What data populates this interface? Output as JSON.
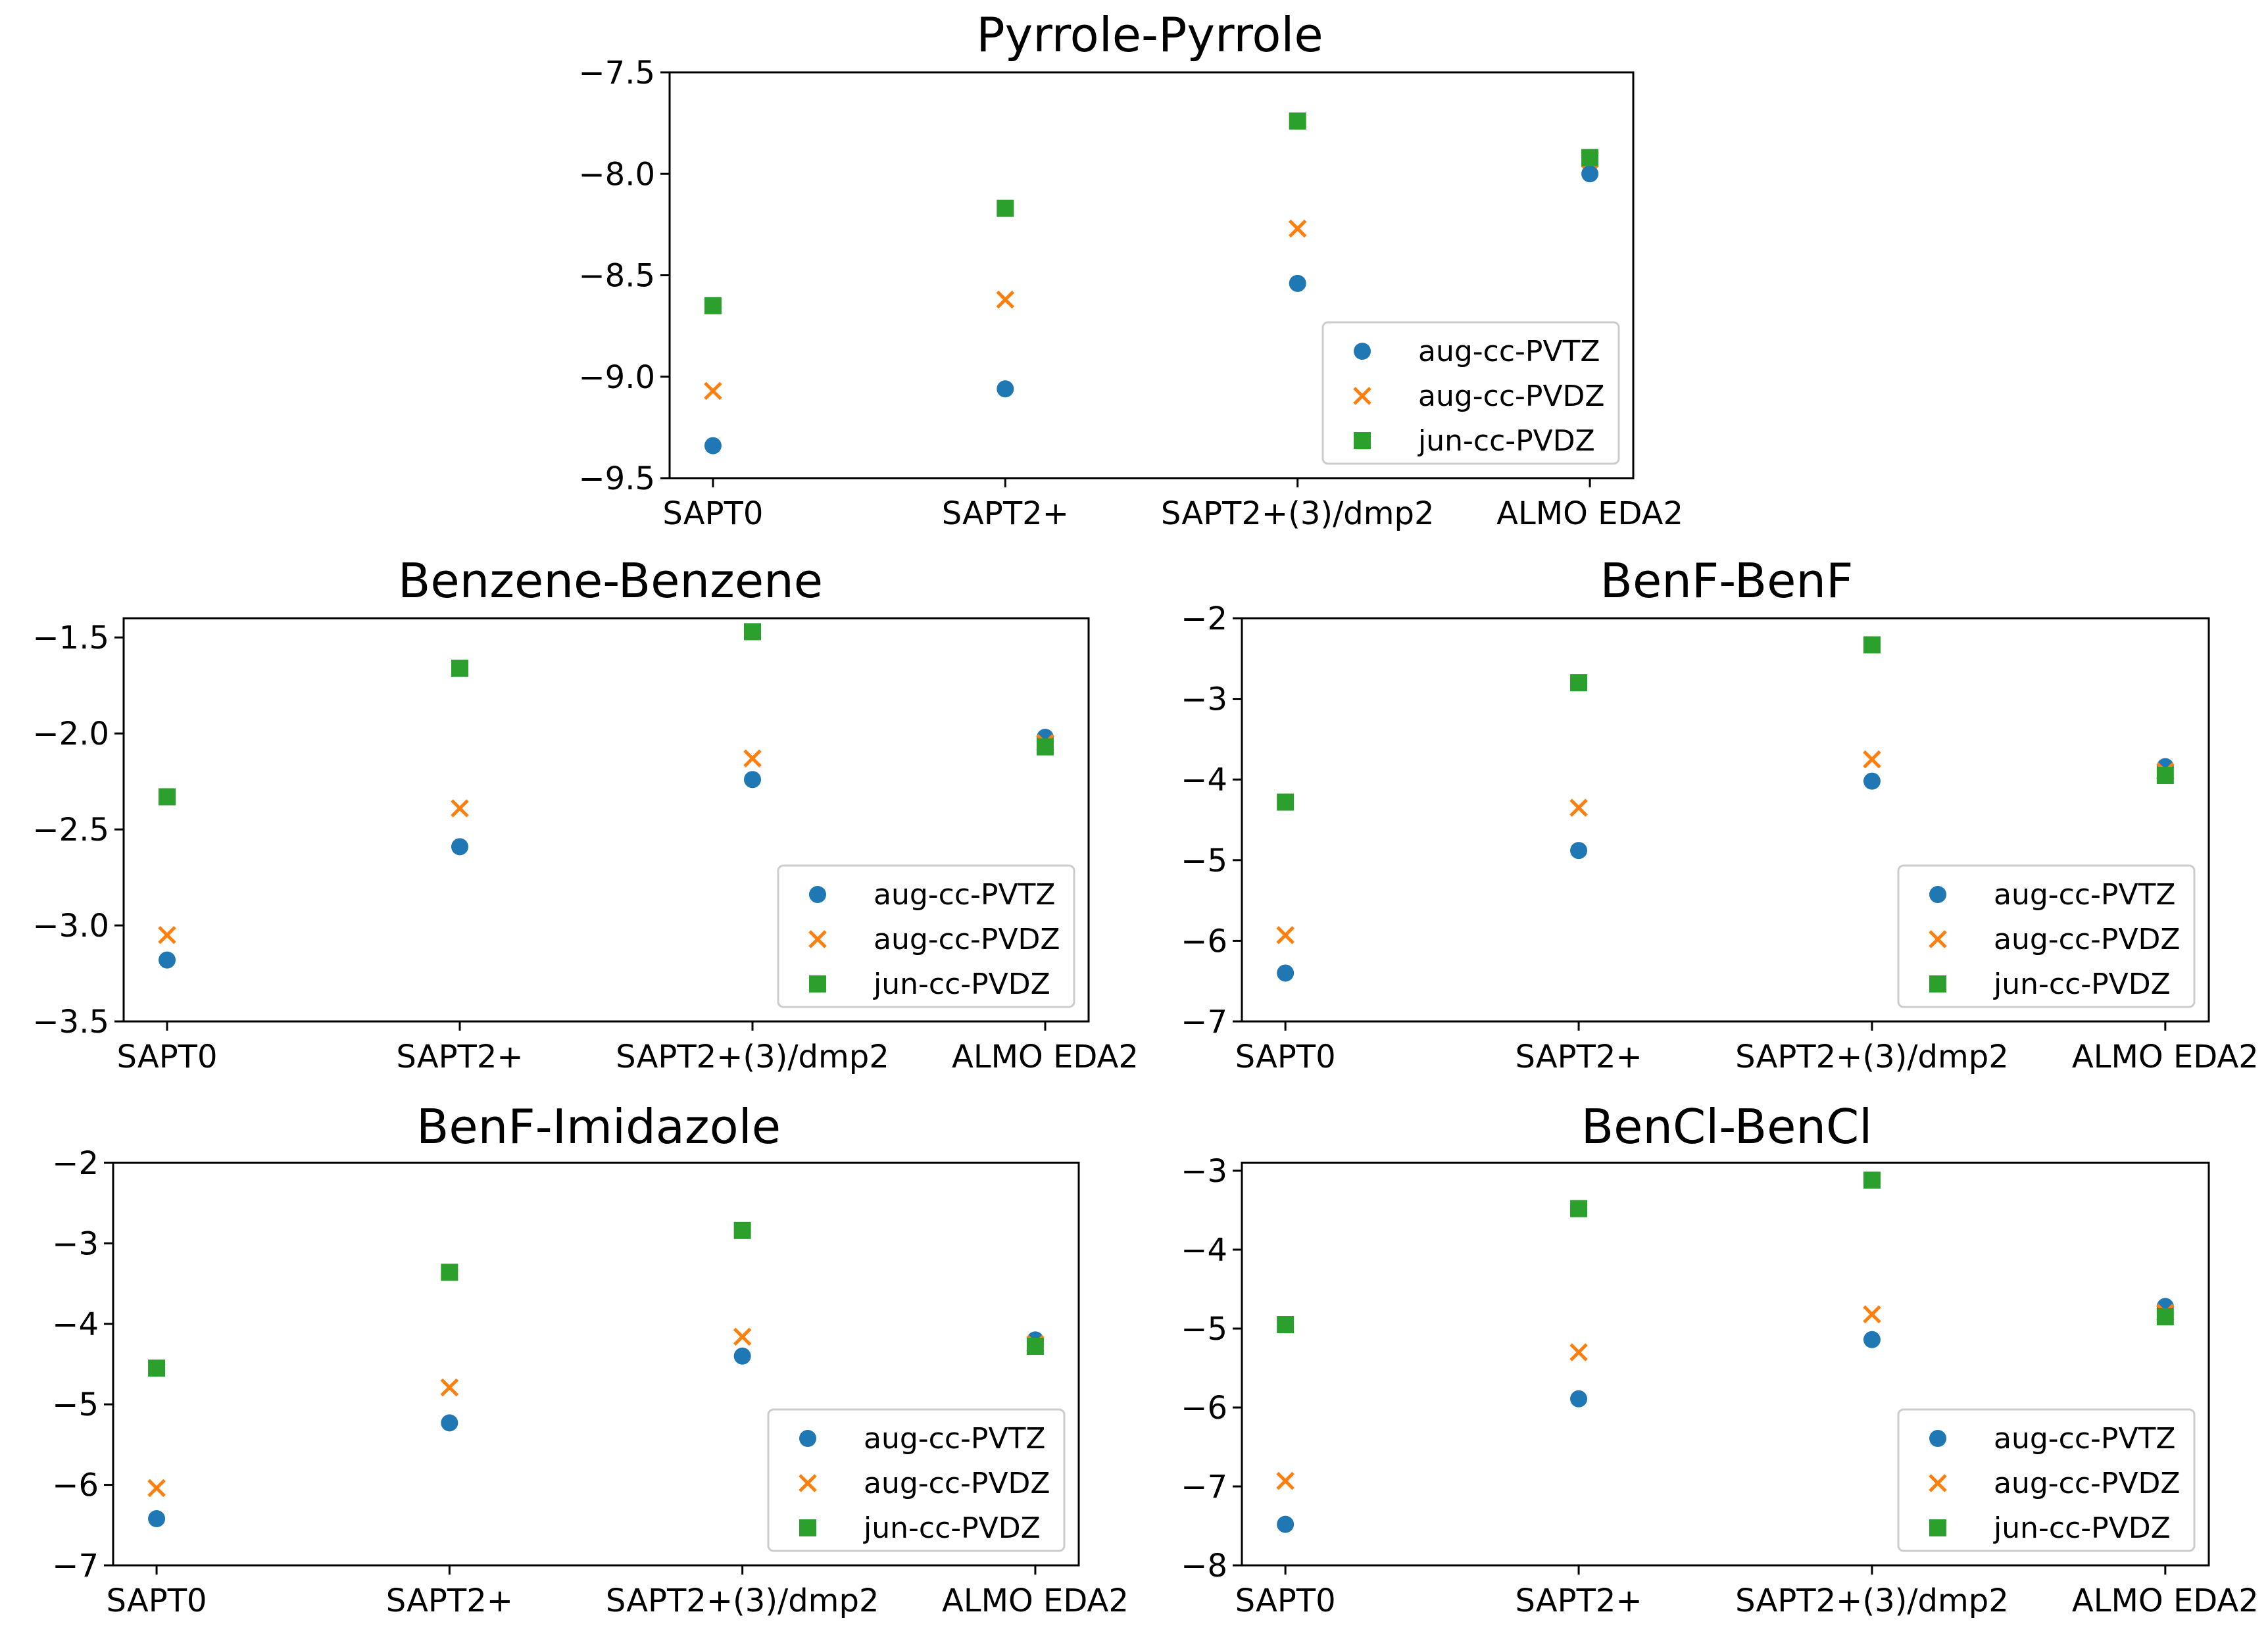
{
  "colors": {
    "aug_cc_pvtz": "#1f77b4",
    "aug_cc_pvdz": "#ff7f0e",
    "jun_cc_pvdz": "#2ca02c"
  },
  "chart_data": [
    {
      "type": "scatter",
      "title": "Pyrrole-Pyrrole",
      "categories": [
        "SAPT0",
        "SAPT2+",
        "SAPT2+(3)/dmp2",
        "ALMO EDA2"
      ],
      "ylim": [
        -9.5,
        -7.5
      ],
      "yticks": [
        -9.5,
        -9.0,
        -8.5,
        -8.0,
        -7.5
      ],
      "ytick_labels": [
        "−9.5",
        "−9.0",
        "−8.5",
        "−8.0",
        "−7.5"
      ],
      "legend_position": "lower-right",
      "series": [
        {
          "name": "aug-cc-PVTZ",
          "marker": "circle",
          "values": [
            -9.34,
            -9.06,
            -8.54,
            -8.0
          ]
        },
        {
          "name": "aug-cc-PVDZ",
          "marker": "x",
          "values": [
            -9.07,
            -8.62,
            -8.27,
            -7.93
          ]
        },
        {
          "name": "jun-cc-PVDZ",
          "marker": "square",
          "values": [
            -8.65,
            -8.17,
            -7.74,
            -7.92
          ]
        }
      ]
    },
    {
      "type": "scatter",
      "title": "Benzene-Benzene",
      "categories": [
        "SAPT0",
        "SAPT2+",
        "SAPT2+(3)/dmp2",
        "ALMO EDA2"
      ],
      "ylim": [
        -3.5,
        -1.4
      ],
      "yticks": [
        -3.5,
        -3.0,
        -2.5,
        -2.0,
        -1.5
      ],
      "ytick_labels": [
        "−3.5",
        "−3.0",
        "−2.5",
        "−2.0",
        "−1.5"
      ],
      "legend_position": "lower-right",
      "series": [
        {
          "name": "aug-cc-PVTZ",
          "marker": "circle",
          "values": [
            -3.18,
            -2.59,
            -2.24,
            -2.02
          ]
        },
        {
          "name": "aug-cc-PVDZ",
          "marker": "x",
          "values": [
            -3.05,
            -2.39,
            -2.13,
            -2.05
          ]
        },
        {
          "name": "jun-cc-PVDZ",
          "marker": "square",
          "values": [
            -2.33,
            -1.66,
            -1.47,
            -2.07
          ]
        }
      ]
    },
    {
      "type": "scatter",
      "title": "BenF-BenF",
      "categories": [
        "SAPT0",
        "SAPT2+",
        "SAPT2+(3)/dmp2",
        "ALMO EDA2"
      ],
      "ylim": [
        -7,
        -2
      ],
      "yticks": [
        -7,
        -6,
        -5,
        -4,
        -3,
        -2
      ],
      "ytick_labels": [
        "−7",
        "−6",
        "−5",
        "−4",
        "−3",
        "−2"
      ],
      "legend_position": "lower-right",
      "series": [
        {
          "name": "aug-cc-PVTZ",
          "marker": "circle",
          "values": [
            -6.4,
            -4.88,
            -4.02,
            -3.84
          ]
        },
        {
          "name": "aug-cc-PVDZ",
          "marker": "x",
          "values": [
            -5.93,
            -4.35,
            -3.75,
            -3.9
          ]
        },
        {
          "name": "jun-cc-PVDZ",
          "marker": "square",
          "values": [
            -4.28,
            -2.8,
            -2.33,
            -3.95
          ]
        }
      ]
    },
    {
      "type": "scatter",
      "title": "BenF-Imidazole",
      "categories": [
        "SAPT0",
        "SAPT2+",
        "SAPT2+(3)/dmp2",
        "ALMO EDA2"
      ],
      "ylim": [
        -7,
        -2
      ],
      "yticks": [
        -7,
        -6,
        -5,
        -4,
        -3,
        -2
      ],
      "ytick_labels": [
        "−7",
        "−6",
        "−5",
        "−4",
        "−3",
        "−2"
      ],
      "legend_position": "lower-right",
      "series": [
        {
          "name": "aug-cc-PVTZ",
          "marker": "circle",
          "values": [
            -6.42,
            -5.23,
            -4.4,
            -4.2
          ]
        },
        {
          "name": "aug-cc-PVDZ",
          "marker": "x",
          "values": [
            -6.04,
            -4.79,
            -4.16,
            -4.25
          ]
        },
        {
          "name": "jun-cc-PVDZ",
          "marker": "square",
          "values": [
            -4.55,
            -3.36,
            -2.84,
            -4.28
          ]
        }
      ]
    },
    {
      "type": "scatter",
      "title": "BenCl-BenCl",
      "categories": [
        "SAPT0",
        "SAPT2+",
        "SAPT2+(3)/dmp2",
        "ALMO EDA2"
      ],
      "ylim": [
        -8,
        -2.9
      ],
      "yticks": [
        -8,
        -7,
        -6,
        -5,
        -4,
        -3
      ],
      "ytick_labels": [
        "−8",
        "−7",
        "−6",
        "−5",
        "−4",
        "−3"
      ],
      "legend_position": "lower-right",
      "series": [
        {
          "name": "aug-cc-PVTZ",
          "marker": "circle",
          "values": [
            -7.48,
            -5.89,
            -5.14,
            -4.72
          ]
        },
        {
          "name": "aug-cc-PVDZ",
          "marker": "x",
          "values": [
            -6.93,
            -5.3,
            -4.82,
            -4.8
          ]
        },
        {
          "name": "jun-cc-PVDZ",
          "marker": "square",
          "values": [
            -4.95,
            -3.48,
            -3.12,
            -4.85
          ]
        }
      ]
    }
  ]
}
